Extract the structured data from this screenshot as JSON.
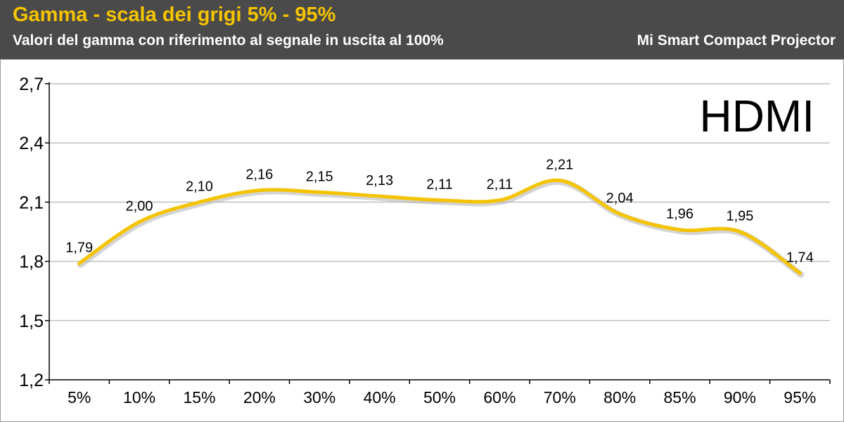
{
  "header": {
    "title": "Gamma - scala dei grigi 5% - 95%",
    "subtitle": "Valori del gamma con riferimento al segnale in uscita al 100%",
    "device": "Mi Smart Compact Projector"
  },
  "colors": {
    "header_bg": "#4a4a4a",
    "title": "#f5c400",
    "line": "#f5c400",
    "grid": "#bfbfbf"
  },
  "chart_data": {
    "type": "line",
    "annotation": "HDMI",
    "categories": [
      "5%",
      "10%",
      "15%",
      "20%",
      "30%",
      "40%",
      "50%",
      "60%",
      "70%",
      "80%",
      "85%",
      "90%",
      "95%"
    ],
    "values": [
      1.79,
      2.0,
      2.1,
      2.16,
      2.15,
      2.13,
      2.11,
      2.11,
      2.21,
      2.04,
      1.96,
      1.95,
      1.74
    ],
    "data_labels": [
      "1,79",
      "2,00",
      "2,10",
      "2,16",
      "2,15",
      "2,13",
      "2,11",
      "2,11",
      "2,21",
      "2,04",
      "1,96",
      "1,95",
      "1,74"
    ],
    "ylim": [
      1.2,
      2.7
    ],
    "yticks": [
      1.2,
      1.5,
      1.8,
      2.1,
      2.4,
      2.7
    ],
    "ytick_labels": [
      "1,2",
      "1,5",
      "1,8",
      "2,1",
      "2,4",
      "2,7"
    ],
    "grid": true,
    "legend": "none"
  }
}
